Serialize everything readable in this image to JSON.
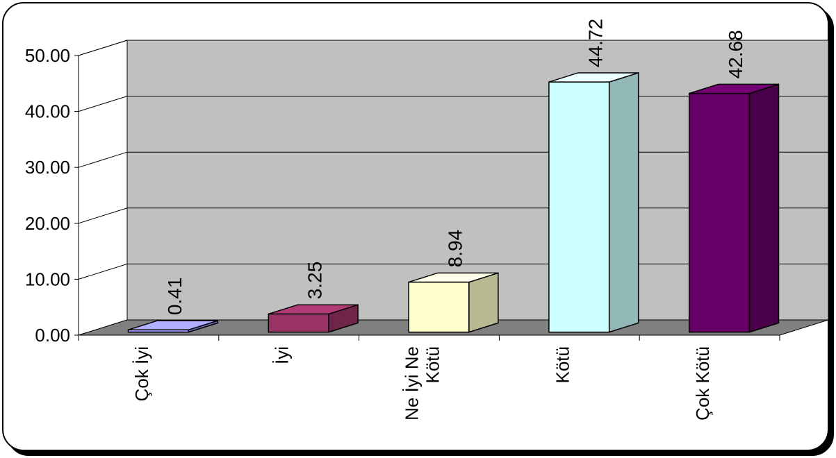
{
  "chart_data": {
    "type": "bar",
    "categories": [
      [
        "Çok İyi"
      ],
      [
        "İyi"
      ],
      [
        "Ne İyi Ne",
        "Kötü"
      ],
      [
        "Kötü"
      ],
      [
        "Çok Kötü"
      ]
    ],
    "values": [
      0.41,
      3.25,
      8.94,
      44.72,
      42.68
    ],
    "value_labels": [
      "0.41",
      "3.25",
      "8.94",
      "44.72",
      "42.68"
    ],
    "y_ticks": [
      "0.00",
      "10.00",
      "20.00",
      "30.00",
      "40.00",
      "50.00"
    ],
    "ylim": [
      0,
      50
    ],
    "title": "",
    "xlabel": "",
    "ylabel": "",
    "grid": true,
    "legend": "none",
    "three_d": true,
    "colors": {
      "bars": [
        "#9999ff",
        "#993366",
        "#ffffcc",
        "#ccffff",
        "#660066"
      ],
      "wall": "#c0c0c0",
      "floor": "#808080",
      "gridline": "#000000",
      "background": "#ffffff",
      "frame": "#000000"
    }
  }
}
